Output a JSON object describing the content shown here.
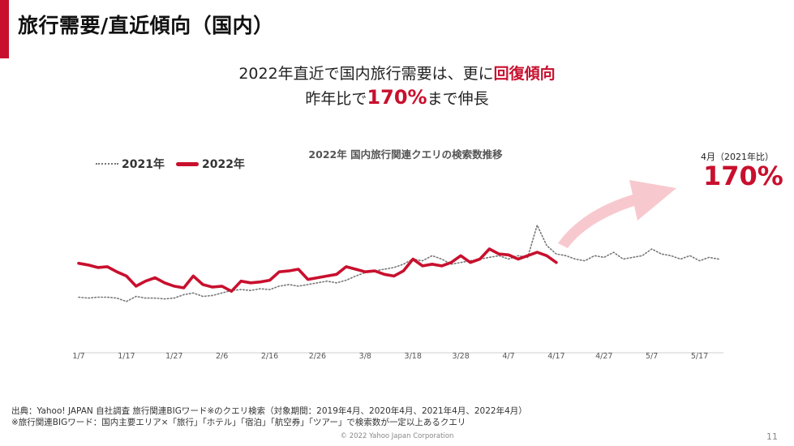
{
  "title": "旅行需要/直近傾向（国内）",
  "headline": {
    "line1_pre": "2022年直近で国内旅行需要は、更に",
    "line1_emph": "回復傾向",
    "line2_pre": "昨年比で",
    "line2_emph": "170%",
    "line2_post": "まで伸長"
  },
  "callout": {
    "label": "4月（2021年比）",
    "value": "170%"
  },
  "source_line1": "出典：Yahoo! JAPAN 自社調査 旅行関連BIGワード※のクエリ検索（対象期間：2019年4月、2020年4月、2021年4月、2022年4月）",
  "source_line2": "※旅行関連BIGワード：国内主要エリア×「旅行」「ホテル」「宿泊」「航空券」「ツアー」で検索数が一定以上あるクエリ",
  "copyright": "© 2022 Yahoo Japan Corporation",
  "page_number": "11",
  "colors": {
    "brand_red": "#c8102e",
    "series_2021": "#777777",
    "arrow": "#f7c9cf"
  },
  "chart_data": {
    "type": "line",
    "title": "2022年 国内旅行関連クエリの検索数推移",
    "xlabel": "",
    "ylabel": "",
    "x_tick_labels": [
      "1/7",
      "1/17",
      "1/27",
      "2/6",
      "2/16",
      "2/26",
      "3/8",
      "3/18",
      "3/28",
      "4/7",
      "4/17",
      "4/27",
      "5/7",
      "5/17"
    ],
    "x_range_days": [
      0,
      135
    ],
    "ylim": [
      0,
      200
    ],
    "grid": false,
    "legend_position": "top-left",
    "series": [
      {
        "name": "2021年",
        "style": "dotted",
        "points": [
          [
            0,
            55
          ],
          [
            2,
            54
          ],
          [
            4,
            55
          ],
          [
            6,
            55
          ],
          [
            8,
            54
          ],
          [
            10,
            50
          ],
          [
            12,
            56
          ],
          [
            14,
            54
          ],
          [
            16,
            54
          ],
          [
            18,
            53
          ],
          [
            20,
            54
          ],
          [
            22,
            58
          ],
          [
            24,
            60
          ],
          [
            26,
            56
          ],
          [
            28,
            57
          ],
          [
            30,
            60
          ],
          [
            32,
            63
          ],
          [
            34,
            64
          ],
          [
            36,
            63
          ],
          [
            38,
            65
          ],
          [
            40,
            64
          ],
          [
            42,
            68
          ],
          [
            44,
            70
          ],
          [
            46,
            68
          ],
          [
            48,
            70
          ],
          [
            50,
            72
          ],
          [
            52,
            74
          ],
          [
            54,
            72
          ],
          [
            56,
            75
          ],
          [
            58,
            80
          ],
          [
            60,
            84
          ],
          [
            62,
            86
          ],
          [
            64,
            88
          ],
          [
            66,
            90
          ],
          [
            68,
            94
          ],
          [
            70,
            100
          ],
          [
            72,
            98
          ],
          [
            74,
            104
          ],
          [
            76,
            100
          ],
          [
            78,
            94
          ],
          [
            80,
            96
          ],
          [
            82,
            98
          ],
          [
            84,
            100
          ],
          [
            86,
            102
          ],
          [
            88,
            104
          ],
          [
            90,
            100
          ],
          [
            92,
            104
          ],
          [
            94,
            102
          ],
          [
            96,
            140
          ],
          [
            98,
            116
          ],
          [
            100,
            106
          ],
          [
            102,
            104
          ],
          [
            104,
            100
          ],
          [
            106,
            98
          ],
          [
            108,
            104
          ],
          [
            110,
            102
          ],
          [
            112,
            108
          ],
          [
            114,
            100
          ],
          [
            116,
            102
          ],
          [
            118,
            104
          ],
          [
            120,
            112
          ],
          [
            122,
            106
          ],
          [
            124,
            104
          ],
          [
            126,
            100
          ],
          [
            128,
            104
          ],
          [
            130,
            98
          ],
          [
            132,
            102
          ],
          [
            134,
            100
          ]
        ]
      },
      {
        "name": "2022年",
        "style": "solid",
        "points": [
          [
            0,
            95
          ],
          [
            2,
            93
          ],
          [
            4,
            90
          ],
          [
            6,
            91
          ],
          [
            8,
            85
          ],
          [
            10,
            80
          ],
          [
            12,
            68
          ],
          [
            14,
            74
          ],
          [
            16,
            78
          ],
          [
            18,
            72
          ],
          [
            20,
            68
          ],
          [
            22,
            66
          ],
          [
            24,
            80
          ],
          [
            26,
            70
          ],
          [
            28,
            67
          ],
          [
            30,
            68
          ],
          [
            32,
            62
          ],
          [
            34,
            74
          ],
          [
            36,
            72
          ],
          [
            38,
            73
          ],
          [
            40,
            75
          ],
          [
            42,
            85
          ],
          [
            44,
            86
          ],
          [
            46,
            88
          ],
          [
            48,
            76
          ],
          [
            50,
            78
          ],
          [
            52,
            80
          ],
          [
            54,
            82
          ],
          [
            56,
            91
          ],
          [
            58,
            88
          ],
          [
            60,
            85
          ],
          [
            62,
            86
          ],
          [
            64,
            82
          ],
          [
            66,
            80
          ],
          [
            68,
            86
          ],
          [
            70,
            100
          ],
          [
            72,
            92
          ],
          [
            74,
            94
          ],
          [
            76,
            92
          ],
          [
            78,
            96
          ],
          [
            80,
            104
          ],
          [
            82,
            96
          ],
          [
            84,
            100
          ],
          [
            86,
            112
          ],
          [
            88,
            106
          ],
          [
            90,
            105
          ],
          [
            92,
            100
          ],
          [
            94,
            104
          ],
          [
            96,
            108
          ],
          [
            98,
            104
          ],
          [
            100,
            96
          ]
        ]
      }
    ]
  }
}
